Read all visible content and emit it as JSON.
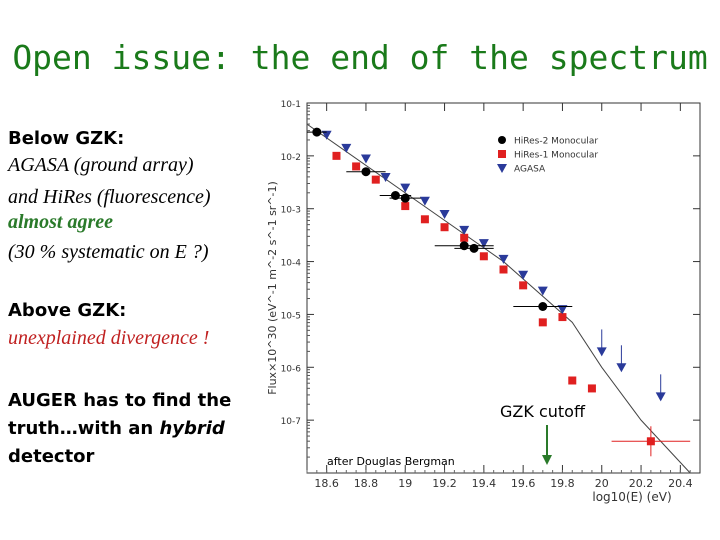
{
  "slide": {
    "title": "Open issue: the end of the spectrum",
    "below_heading": "Below GZK:",
    "below_line1": "AGASA (ground array)",
    "below_line2": "and HiRes (fluorescence)",
    "below_line3": "almost agree",
    "below_line4": "(30 % systematic on E ?)",
    "above_heading": "Above GZK:",
    "above_line1": "unexplained divergence !",
    "auger_line1": "AUGER has to find the",
    "auger_line2a": "truth…with an ",
    "auger_line2b": "hybrid",
    "auger_line3": "detector"
  },
  "chart_data": {
    "type": "scatter",
    "xlabel": "log10(E) (eV)",
    "ylabel": "Flux×10^30 (eV^-1 m^-2 s^-1 sr^-1)",
    "xlim": [
      18.5,
      20.5
    ],
    "ylim_log10": [
      -8,
      -1
    ],
    "x_ticks": [
      "18.6",
      "18.8",
      "19",
      "19.2",
      "19.4",
      "19.6",
      "19.8",
      "20",
      "20.2",
      "20.4"
    ],
    "y_ticks": [
      "10^-1",
      "10^-2",
      "10^-3",
      "10^-4",
      "10^-5",
      "10^-6",
      "10^-7"
    ],
    "legend": [
      "HiRes-2 Monocular",
      "HiRes-1 Monocular",
      "AGASA"
    ],
    "legend_position": "top-right",
    "colors": {
      "hires2": "#000000",
      "hires1": "#e02020",
      "agasa": "#2a3a9a",
      "fit": "#444444",
      "title": "#1a7a1a"
    },
    "series": [
      {
        "name": "HiRes-2 Monocular",
        "marker": "circle",
        "x": [
          18.55,
          18.8,
          18.95,
          19.0,
          19.3,
          19.35,
          19.7
        ],
        "y_log10": [
          -1.55,
          -2.3,
          -2.75,
          -2.8,
          -3.7,
          -3.75,
          -4.85
        ],
        "xerr": [
          0.05,
          0.1,
          0.08,
          0.08,
          0.15,
          0.1,
          0.15
        ]
      },
      {
        "name": "HiRes-1 Monocular",
        "marker": "square",
        "x": [
          18.65,
          18.75,
          18.85,
          19.0,
          19.1,
          19.2,
          19.3,
          19.4,
          19.5,
          19.6,
          19.7,
          19.8,
          19.85,
          19.95,
          20.25
        ],
        "y_log10": [
          -2.0,
          -2.2,
          -2.45,
          -2.95,
          -3.2,
          -3.35,
          -3.55,
          -3.9,
          -4.15,
          -4.45,
          -5.15,
          -5.05,
          -6.25,
          -6.4,
          -7.4
        ],
        "xerr": [
          0,
          0,
          0,
          0,
          0,
          0,
          0,
          0,
          0,
          0,
          0,
          0,
          0,
          0,
          0.2
        ]
      },
      {
        "name": "AGASA",
        "marker": "triangle-down",
        "x": [
          18.6,
          18.7,
          18.8,
          18.9,
          19.0,
          19.1,
          19.2,
          19.3,
          19.4,
          19.5,
          19.6,
          19.7,
          19.8,
          20.0,
          20.1,
          20.3
        ],
        "y_log10": [
          -1.6,
          -1.85,
          -2.05,
          -2.4,
          -2.6,
          -2.85,
          -3.1,
          -3.4,
          -3.65,
          -3.95,
          -4.25,
          -4.55,
          -4.9,
          -5.7,
          -6.0,
          -6.55
        ]
      },
      {
        "name": "",
        "marker": "line",
        "x": [
          18.5,
          19.0,
          19.5,
          19.85,
          20.0,
          20.2,
          20.45
        ],
        "y_log10": [
          -1.4,
          -2.7,
          -4.0,
          -5.15,
          -6.0,
          -7.0,
          -8.0
        ]
      }
    ],
    "annotations": {
      "gzk": "GZK cutoff",
      "credit": "after Douglas Bergman"
    }
  }
}
